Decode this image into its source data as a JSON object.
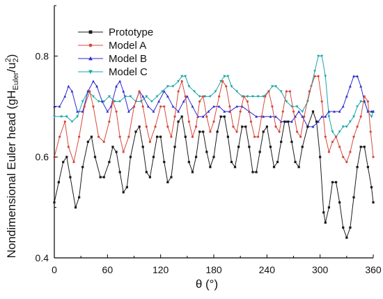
{
  "chart_data": {
    "type": "line",
    "xlabel": "θ (°)",
    "ylabel": "Nondimensional Euler head (gH_Euler/u_2^2)",
    "ylabel_parts": {
      "pre": "Nondimensional Euler head (gH",
      "sub1": "Euler",
      "mid": "/u",
      "sub2": "2",
      "sup": "2",
      "post": ")"
    },
    "xlim": [
      0,
      360
    ],
    "ylim": [
      0.4,
      0.9
    ],
    "xticks": [
      0,
      60,
      120,
      180,
      240,
      300,
      360
    ],
    "yticks": [
      0.4,
      0.6,
      0.8
    ],
    "ytick_labels": [
      "0.4",
      "0.6",
      "0.8"
    ],
    "grid": false,
    "legend_position": "top-left",
    "series": [
      {
        "name": "Prototype",
        "color": "#1a1a1a",
        "marker": "square",
        "points": [
          [
            0,
            0.51
          ],
          [
            5,
            0.55
          ],
          [
            10,
            0.59
          ],
          [
            14,
            0.6
          ],
          [
            18,
            0.56
          ],
          [
            24,
            0.5
          ],
          [
            28,
            0.52
          ],
          [
            32,
            0.58
          ],
          [
            38,
            0.63
          ],
          [
            42,
            0.64
          ],
          [
            46,
            0.6
          ],
          [
            52,
            0.56
          ],
          [
            56,
            0.56
          ],
          [
            62,
            0.59
          ],
          [
            66,
            0.62
          ],
          [
            70,
            0.61
          ],
          [
            74,
            0.57
          ],
          [
            78,
            0.53
          ],
          [
            82,
            0.54
          ],
          [
            86,
            0.6
          ],
          [
            92,
            0.65
          ],
          [
            96,
            0.66
          ],
          [
            100,
            0.62
          ],
          [
            104,
            0.57
          ],
          [
            108,
            0.56
          ],
          [
            112,
            0.6
          ],
          [
            116,
            0.64
          ],
          [
            120,
            0.64
          ],
          [
            124,
            0.59
          ],
          [
            128,
            0.55
          ],
          [
            132,
            0.56
          ],
          [
            136,
            0.62
          ],
          [
            140,
            0.67
          ],
          [
            144,
            0.68
          ],
          [
            148,
            0.64
          ],
          [
            152,
            0.59
          ],
          [
            156,
            0.57
          ],
          [
            160,
            0.6
          ],
          [
            164,
            0.65
          ],
          [
            168,
            0.65
          ],
          [
            172,
            0.61
          ],
          [
            176,
            0.58
          ],
          [
            180,
            0.6
          ],
          [
            184,
            0.65
          ],
          [
            188,
            0.68
          ],
          [
            192,
            0.68
          ],
          [
            196,
            0.64
          ],
          [
            200,
            0.59
          ],
          [
            204,
            0.58
          ],
          [
            208,
            0.62
          ],
          [
            212,
            0.66
          ],
          [
            216,
            0.66
          ],
          [
            220,
            0.62
          ],
          [
            224,
            0.57
          ],
          [
            228,
            0.57
          ],
          [
            232,
            0.61
          ],
          [
            236,
            0.65
          ],
          [
            240,
            0.66
          ],
          [
            244,
            0.62
          ],
          [
            248,
            0.58
          ],
          [
            252,
            0.59
          ],
          [
            256,
            0.63
          ],
          [
            260,
            0.67
          ],
          [
            264,
            0.67
          ],
          [
            268,
            0.63
          ],
          [
            272,
            0.59
          ],
          [
            276,
            0.58
          ],
          [
            280,
            0.62
          ],
          [
            286,
            0.66
          ],
          [
            292,
            0.69
          ],
          [
            296,
            0.67
          ],
          [
            300,
            0.6
          ],
          [
            304,
            0.49
          ],
          [
            306,
            0.47
          ],
          [
            310,
            0.5
          ],
          [
            314,
            0.55
          ],
          [
            318,
            0.55
          ],
          [
            322,
            0.51
          ],
          [
            326,
            0.46
          ],
          [
            330,
            0.44
          ],
          [
            334,
            0.46
          ],
          [
            338,
            0.52
          ],
          [
            342,
            0.58
          ],
          [
            346,
            0.62
          ],
          [
            350,
            0.62
          ],
          [
            354,
            0.58
          ],
          [
            358,
            0.54
          ],
          [
            360,
            0.51
          ]
        ]
      },
      {
        "name": "Model A",
        "color": "#d44a3c",
        "marker": "circle",
        "points": [
          [
            0,
            0.6
          ],
          [
            6,
            0.64
          ],
          [
            12,
            0.67
          ],
          [
            16,
            0.62
          ],
          [
            22,
            0.59
          ],
          [
            28,
            0.64
          ],
          [
            34,
            0.7
          ],
          [
            40,
            0.73
          ],
          [
            44,
            0.7
          ],
          [
            50,
            0.64
          ],
          [
            56,
            0.63
          ],
          [
            62,
            0.67
          ],
          [
            66,
            0.71
          ],
          [
            70,
            0.69
          ],
          [
            74,
            0.64
          ],
          [
            78,
            0.61
          ],
          [
            84,
            0.64
          ],
          [
            90,
            0.7
          ],
          [
            96,
            0.73
          ],
          [
            100,
            0.7
          ],
          [
            104,
            0.66
          ],
          [
            108,
            0.63
          ],
          [
            114,
            0.66
          ],
          [
            120,
            0.7
          ],
          [
            124,
            0.7
          ],
          [
            128,
            0.66
          ],
          [
            132,
            0.64
          ],
          [
            136,
            0.68
          ],
          [
            140,
            0.73
          ],
          [
            144,
            0.75
          ],
          [
            148,
            0.72
          ],
          [
            152,
            0.67
          ],
          [
            156,
            0.64
          ],
          [
            160,
            0.66
          ],
          [
            164,
            0.71
          ],
          [
            168,
            0.72
          ],
          [
            172,
            0.68
          ],
          [
            176,
            0.65
          ],
          [
            180,
            0.67
          ],
          [
            186,
            0.72
          ],
          [
            190,
            0.75
          ],
          [
            194,
            0.74
          ],
          [
            198,
            0.7
          ],
          [
            202,
            0.66
          ],
          [
            206,
            0.65
          ],
          [
            210,
            0.69
          ],
          [
            214,
            0.72
          ],
          [
            218,
            0.71
          ],
          [
            222,
            0.67
          ],
          [
            226,
            0.64
          ],
          [
            230,
            0.64
          ],
          [
            234,
            0.68
          ],
          [
            238,
            0.72
          ],
          [
            242,
            0.73
          ],
          [
            246,
            0.7
          ],
          [
            250,
            0.66
          ],
          [
            254,
            0.65
          ],
          [
            258,
            0.69
          ],
          [
            262,
            0.73
          ],
          [
            266,
            0.73
          ],
          [
            270,
            0.69
          ],
          [
            274,
            0.65
          ],
          [
            278,
            0.64
          ],
          [
            282,
            0.68
          ],
          [
            288,
            0.73
          ],
          [
            294,
            0.76
          ],
          [
            298,
            0.76
          ],
          [
            302,
            0.71
          ],
          [
            306,
            0.64
          ],
          [
            310,
            0.61
          ],
          [
            314,
            0.63
          ],
          [
            318,
            0.64
          ],
          [
            322,
            0.62
          ],
          [
            326,
            0.6
          ],
          [
            330,
            0.59
          ],
          [
            334,
            0.61
          ],
          [
            338,
            0.64
          ],
          [
            342,
            0.66
          ],
          [
            346,
            0.68
          ],
          [
            350,
            0.72
          ],
          [
            354,
            0.71
          ],
          [
            357,
            0.65
          ],
          [
            360,
            0.6
          ]
        ]
      },
      {
        "name": "Model B",
        "color": "#2a2ad0",
        "marker": "triangle",
        "points": [
          [
            0,
            0.7
          ],
          [
            6,
            0.7
          ],
          [
            12,
            0.72
          ],
          [
            16,
            0.74
          ],
          [
            20,
            0.73
          ],
          [
            26,
            0.69
          ],
          [
            32,
            0.69
          ],
          [
            38,
            0.73
          ],
          [
            44,
            0.75
          ],
          [
            48,
            0.74
          ],
          [
            54,
            0.71
          ],
          [
            60,
            0.69
          ],
          [
            64,
            0.7
          ],
          [
            70,
            0.74
          ],
          [
            74,
            0.75
          ],
          [
            78,
            0.73
          ],
          [
            84,
            0.69
          ],
          [
            90,
            0.7
          ],
          [
            96,
            0.73
          ],
          [
            100,
            0.72
          ],
          [
            106,
            0.7
          ],
          [
            112,
            0.69
          ],
          [
            118,
            0.71
          ],
          [
            124,
            0.73
          ],
          [
            128,
            0.72
          ],
          [
            134,
            0.7
          ],
          [
            140,
            0.69
          ],
          [
            146,
            0.71
          ],
          [
            150,
            0.72
          ],
          [
            156,
            0.7
          ],
          [
            162,
            0.68
          ],
          [
            168,
            0.68
          ],
          [
            174,
            0.69
          ],
          [
            180,
            0.7
          ],
          [
            186,
            0.7
          ],
          [
            192,
            0.69
          ],
          [
            198,
            0.69
          ],
          [
            206,
            0.7
          ],
          [
            212,
            0.7
          ],
          [
            220,
            0.69
          ],
          [
            228,
            0.68
          ],
          [
            236,
            0.68
          ],
          [
            244,
            0.68
          ],
          [
            250,
            0.68
          ],
          [
            256,
            0.67
          ],
          [
            262,
            0.67
          ],
          [
            268,
            0.67
          ],
          [
            272,
            0.68
          ],
          [
            276,
            0.69
          ],
          [
            280,
            0.68
          ],
          [
            286,
            0.66
          ],
          [
            292,
            0.66
          ],
          [
            298,
            0.67
          ],
          [
            302,
            0.68
          ],
          [
            306,
            0.68
          ],
          [
            310,
            0.69
          ],
          [
            316,
            0.69
          ],
          [
            322,
            0.69
          ],
          [
            326,
            0.7
          ],
          [
            330,
            0.72
          ],
          [
            334,
            0.74
          ],
          [
            338,
            0.76
          ],
          [
            342,
            0.76
          ],
          [
            346,
            0.74
          ],
          [
            350,
            0.71
          ],
          [
            354,
            0.69
          ],
          [
            358,
            0.69
          ],
          [
            360,
            0.69
          ]
        ]
      },
      {
        "name": "Model C",
        "color": "#1aa5a5",
        "marker": "triangle-down",
        "points": [
          [
            0,
            0.68
          ],
          [
            8,
            0.68
          ],
          [
            14,
            0.68
          ],
          [
            20,
            0.67
          ],
          [
            26,
            0.68
          ],
          [
            32,
            0.71
          ],
          [
            38,
            0.73
          ],
          [
            44,
            0.72
          ],
          [
            50,
            0.71
          ],
          [
            56,
            0.71
          ],
          [
            62,
            0.72
          ],
          [
            68,
            0.71
          ],
          [
            74,
            0.71
          ],
          [
            80,
            0.72
          ],
          [
            86,
            0.72
          ],
          [
            92,
            0.71
          ],
          [
            98,
            0.71
          ],
          [
            104,
            0.72
          ],
          [
            110,
            0.71
          ],
          [
            116,
            0.72
          ],
          [
            122,
            0.73
          ],
          [
            128,
            0.74
          ],
          [
            134,
            0.74
          ],
          [
            140,
            0.75
          ],
          [
            144,
            0.76
          ],
          [
            148,
            0.76
          ],
          [
            152,
            0.74
          ],
          [
            158,
            0.73
          ],
          [
            164,
            0.72
          ],
          [
            170,
            0.72
          ],
          [
            176,
            0.72
          ],
          [
            182,
            0.73
          ],
          [
            188,
            0.75
          ],
          [
            192,
            0.76
          ],
          [
            196,
            0.76
          ],
          [
            200,
            0.74
          ],
          [
            206,
            0.73
          ],
          [
            212,
            0.72
          ],
          [
            218,
            0.72
          ],
          [
            224,
            0.72
          ],
          [
            230,
            0.72
          ],
          [
            236,
            0.72
          ],
          [
            242,
            0.73
          ],
          [
            246,
            0.74
          ],
          [
            250,
            0.74
          ],
          [
            256,
            0.73
          ],
          [
            262,
            0.71
          ],
          [
            268,
            0.7
          ],
          [
            274,
            0.7
          ],
          [
            280,
            0.69
          ],
          [
            286,
            0.71
          ],
          [
            290,
            0.74
          ],
          [
            294,
            0.77
          ],
          [
            298,
            0.8
          ],
          [
            302,
            0.8
          ],
          [
            306,
            0.76
          ],
          [
            310,
            0.68
          ],
          [
            314,
            0.65
          ],
          [
            318,
            0.64
          ],
          [
            322,
            0.65
          ],
          [
            326,
            0.66
          ],
          [
            330,
            0.66
          ],
          [
            334,
            0.67
          ],
          [
            338,
            0.68
          ],
          [
            342,
            0.7
          ],
          [
            346,
            0.71
          ],
          [
            350,
            0.71
          ],
          [
            354,
            0.69
          ],
          [
            358,
            0.68
          ],
          [
            360,
            0.69
          ]
        ]
      }
    ]
  }
}
